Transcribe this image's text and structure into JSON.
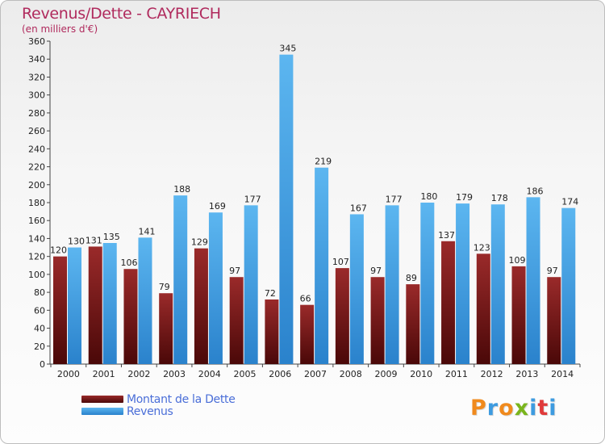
{
  "chart_data": {
    "type": "bar",
    "title": "Revenus/Dette - CAYRIECH",
    "subtitle": "(en milliers d'€)",
    "categories": [
      "2000",
      "2001",
      "2002",
      "2003",
      "2004",
      "2005",
      "2006",
      "2007",
      "2008",
      "2009",
      "2010",
      "2011",
      "2012",
      "2013",
      "2014"
    ],
    "series": [
      {
        "name": "Montant de la Dette",
        "color": "#7a1c1c",
        "values": [
          120,
          131,
          106,
          79,
          129,
          97,
          72,
          66,
          107,
          97,
          89,
          137,
          123,
          109,
          97
        ]
      },
      {
        "name": "Revenus",
        "color": "#4aa3e6",
        "values": [
          130,
          135,
          141,
          188,
          169,
          177,
          345,
          219,
          167,
          177,
          180,
          179,
          178,
          186,
          174
        ]
      }
    ],
    "ylim": [
      0,
      360
    ],
    "yticks": [
      0,
      20,
      40,
      60,
      80,
      100,
      120,
      140,
      160,
      180,
      200,
      220,
      240,
      260,
      280,
      300,
      320,
      340,
      360
    ],
    "grid": false,
    "legend_position": "bottom-left"
  },
  "logo": {
    "letters": [
      "P",
      "r",
      "o",
      "x",
      "i",
      "t",
      "i"
    ],
    "colors": [
      "#f08a1d",
      "#3d9be0",
      "#f08a1d",
      "#7ab51d",
      "#3d9be0",
      "#e03a3a",
      "#3d9be0"
    ]
  }
}
